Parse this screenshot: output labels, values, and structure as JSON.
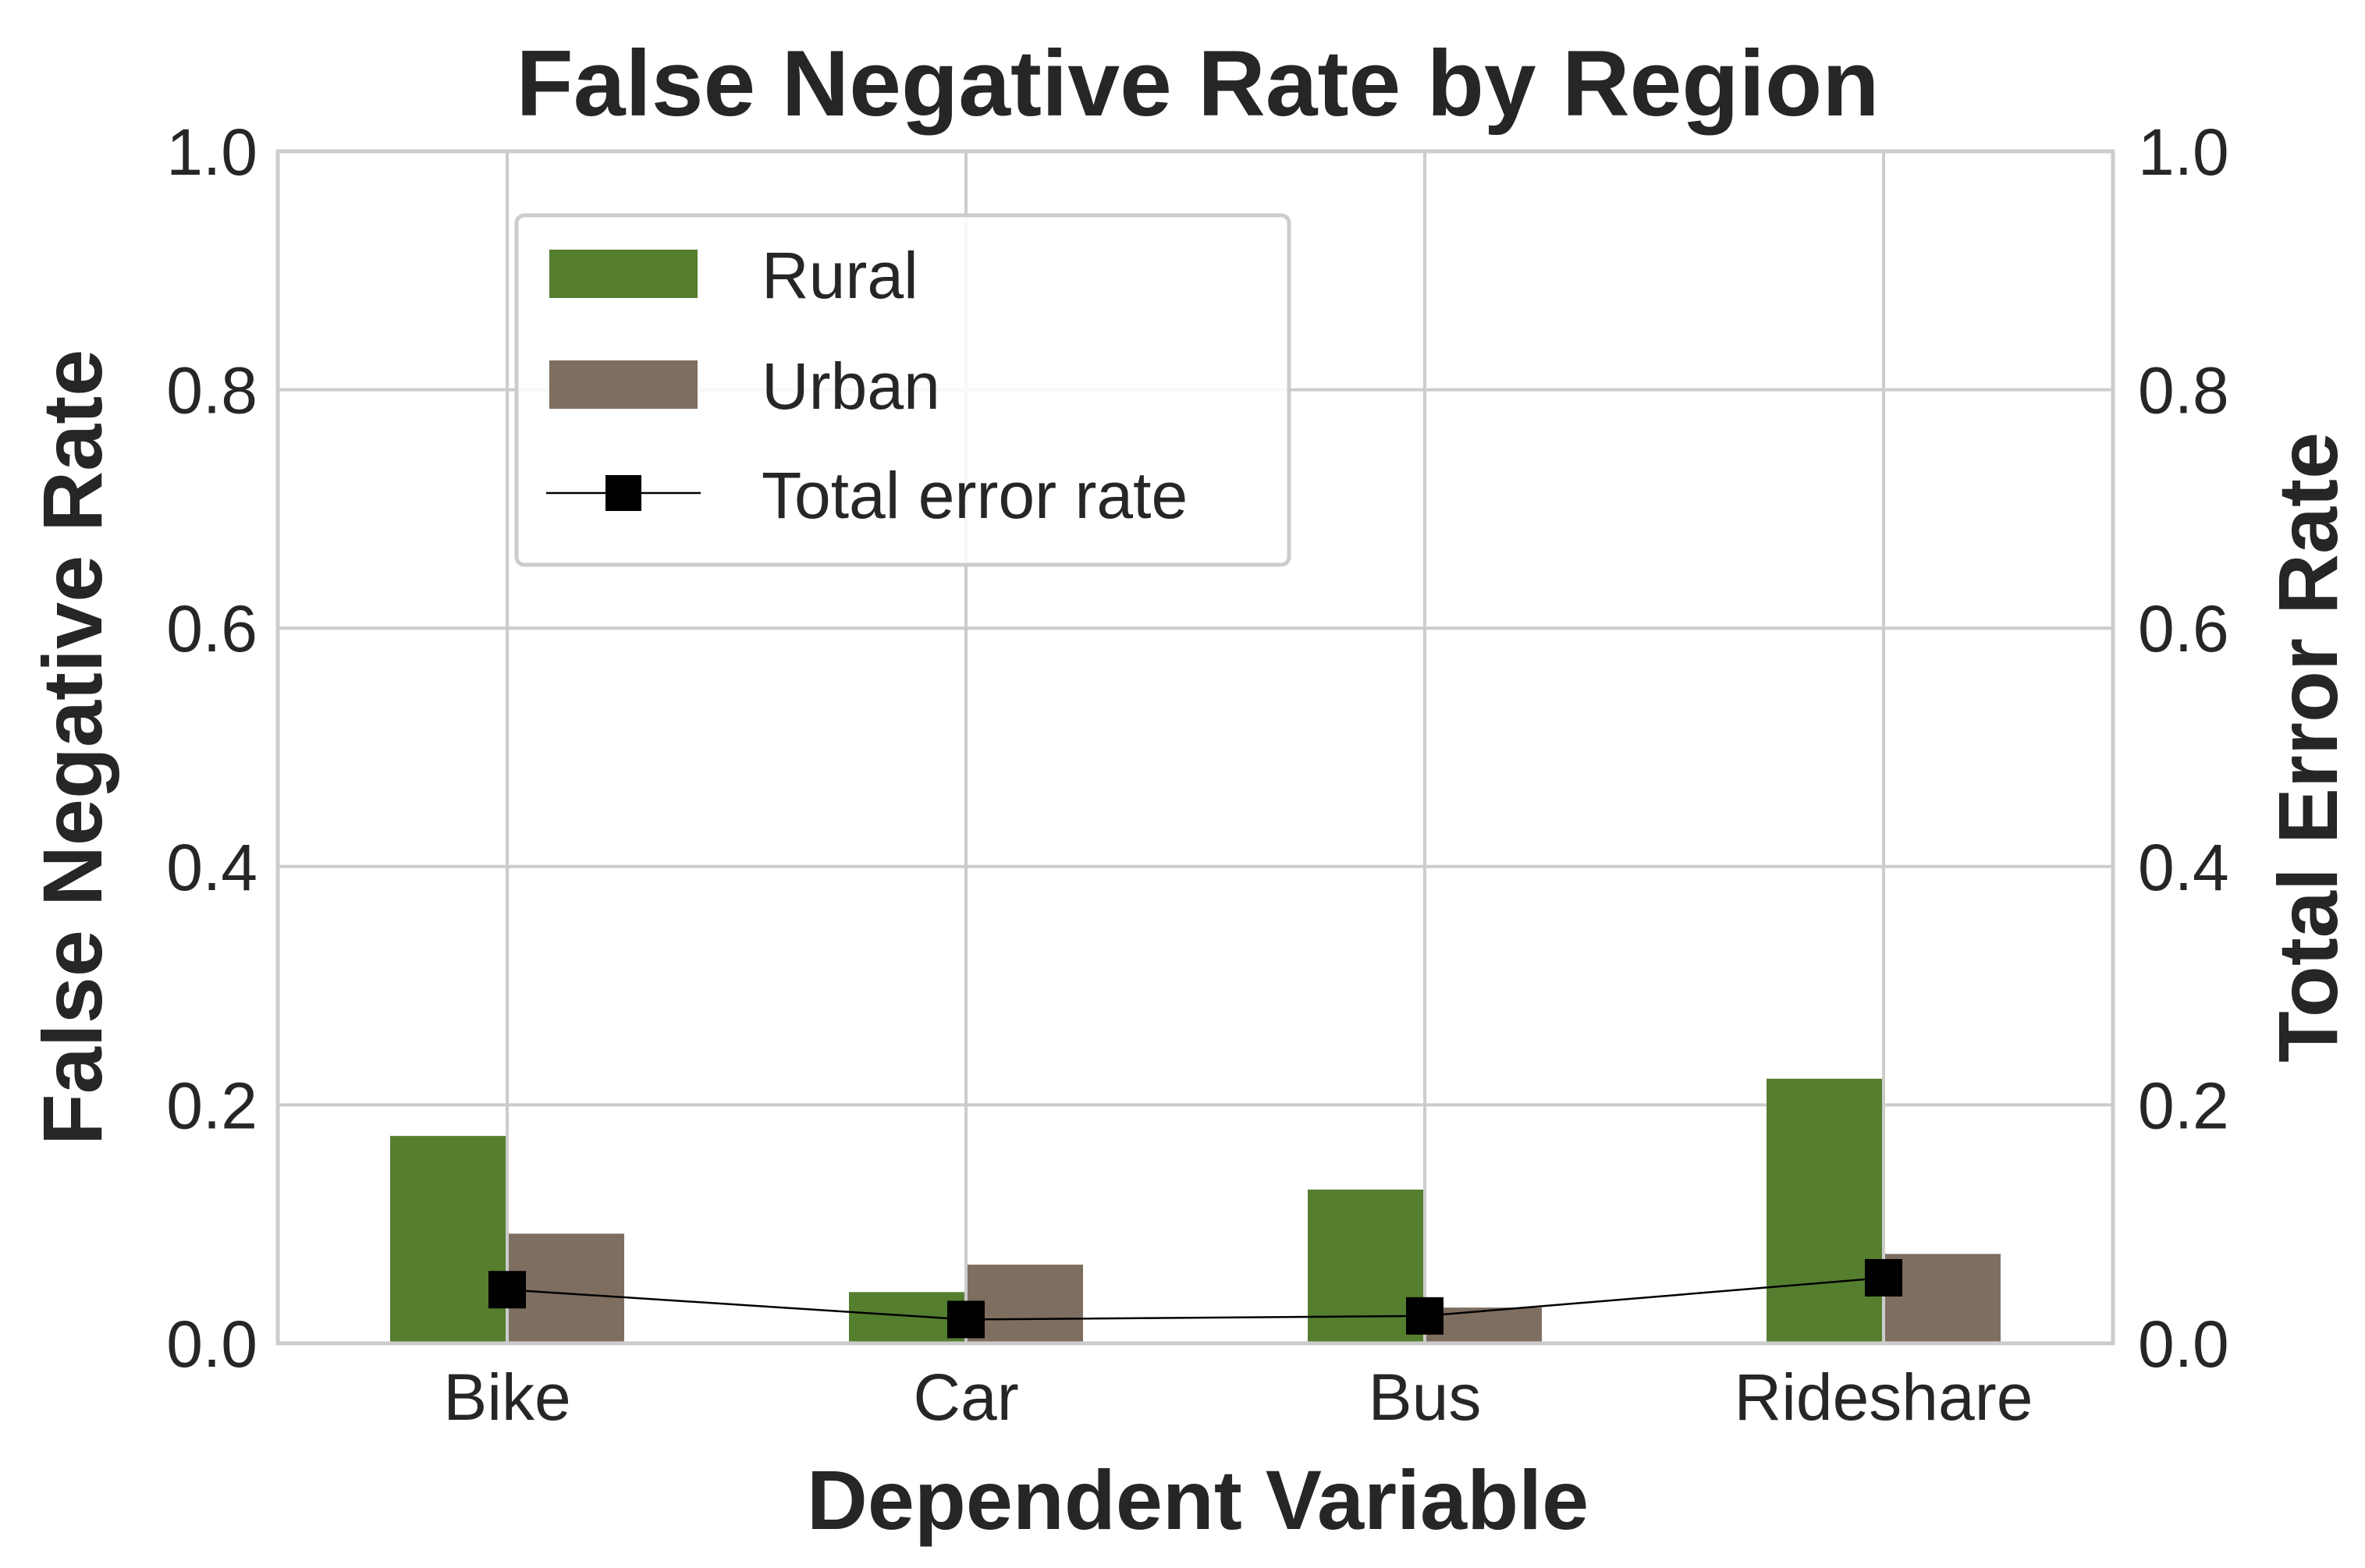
{
  "chart_data": {
    "type": "bar",
    "title": "False Negative Rate by Region",
    "xlabel": "Dependent Variable",
    "ylabel": "False Negative Rate",
    "ylabel_right": "Total Error Rate",
    "categories": [
      "Bike",
      "Car",
      "Bus",
      "Rideshare"
    ],
    "ylim": [
      0,
      1.0
    ],
    "ylim_right": [
      0,
      1.0
    ],
    "yticks": [
      "0.0",
      "0.2",
      "0.4",
      "0.6",
      "0.8",
      "1.0"
    ],
    "yticks_right": [
      "0.0",
      "0.2",
      "0.4",
      "0.6",
      "0.8",
      "1.0"
    ],
    "grid": true,
    "legend_position": "upper-left",
    "series": [
      {
        "name": "Rural",
        "kind": "bar",
        "axis": "left",
        "color": "#557e2f",
        "values": [
          0.174,
          0.043,
          0.129,
          0.222
        ]
      },
      {
        "name": "Urban",
        "kind": "bar",
        "axis": "left",
        "color": "#7e6e60",
        "values": [
          0.092,
          0.066,
          0.03,
          0.075
        ]
      },
      {
        "name": "Total error rate",
        "kind": "line",
        "axis": "right",
        "color": "#000000",
        "marker": "square",
        "values": [
          0.045,
          0.02,
          0.023,
          0.055
        ]
      }
    ]
  }
}
